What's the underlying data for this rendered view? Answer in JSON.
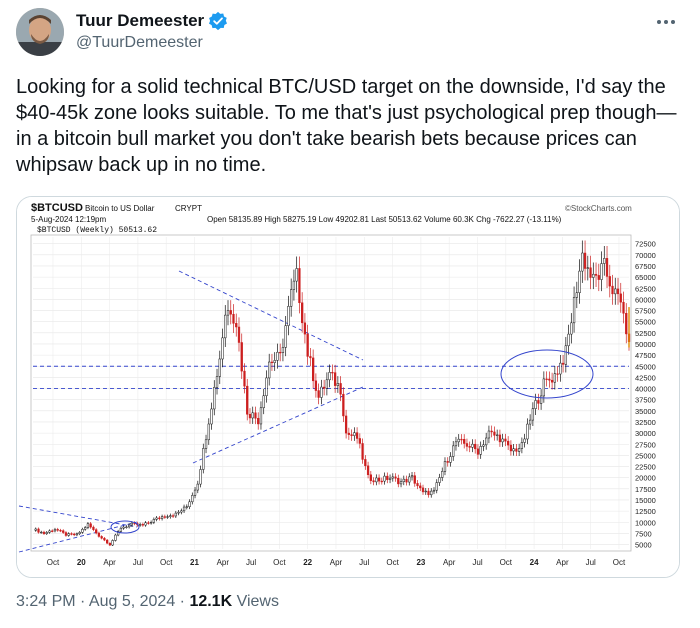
{
  "author": {
    "name": "Tuur Demeester",
    "handle": "@TuurDemeester"
  },
  "tweet": {
    "text": "Looking for a solid technical BTC/USD target on the downside, I'd say the $40-45k zone looks suitable. To me that's just psychological prep though—in a bitcoin bull market you don't take bearish bets because prices can whipsaw back up in no time."
  },
  "chart_header": {
    "symbol": "$BTCUSD",
    "name": "Bitcoin to US Dollar",
    "exchange": "CRYPT",
    "date": "5-Aug-2024 12:19pm",
    "source": "©StockCharts.com",
    "ohlc": "Open 58135.89  High 58275.19  Low 49202.81  Last 50513.62  Volume 60.3K  Chg -7622.27 (-13.11%)",
    "legend": "$BTCUSD (Weekly) 50513.62"
  },
  "colors": {
    "up": "#111111",
    "down": "#cc1f1f",
    "trend": "#3344cc"
  },
  "chart_data": {
    "type": "candlestick",
    "ylim": [
      4000,
      74000
    ],
    "yticks": [
      "72500",
      "70000",
      "67500",
      "65000",
      "62500",
      "60000",
      "57500",
      "55000",
      "52500",
      "50000",
      "47500",
      "45000",
      "42500",
      "40000",
      "37500",
      "35000",
      "32500",
      "30000",
      "27500",
      "25000",
      "22500",
      "20000",
      "17500",
      "15000",
      "12500",
      "10000",
      "7500",
      "5000"
    ],
    "xticks": [
      "Oct",
      "20",
      "Apr",
      "Jul",
      "Oct",
      "21",
      "Apr",
      "Jul",
      "Oct",
      "22",
      "Apr",
      "Jul",
      "Oct",
      "23",
      "Apr",
      "Jul",
      "Oct",
      "24",
      "Apr",
      "Jul",
      "Oct"
    ],
    "anchors": [
      [
        0,
        8500
      ],
      [
        4,
        7500
      ],
      [
        8,
        8500
      ],
      [
        12,
        7200
      ],
      [
        16,
        7200
      ],
      [
        20,
        9500
      ],
      [
        24,
        7000
      ],
      [
        28,
        5000
      ],
      [
        32,
        8800
      ],
      [
        36,
        9500
      ],
      [
        40,
        9300
      ],
      [
        44,
        10500
      ],
      [
        48,
        11500
      ],
      [
        52,
        11800
      ],
      [
        56,
        13500
      ],
      [
        60,
        19000
      ],
      [
        64,
        33000
      ],
      [
        68,
        47000
      ],
      [
        70,
        57000
      ],
      [
        72,
        58000
      ],
      [
        74,
        55000
      ],
      [
        78,
        35000
      ],
      [
        82,
        33000
      ],
      [
        86,
        46000
      ],
      [
        90,
        47000
      ],
      [
        94,
        61000
      ],
      [
        96,
        65000
      ],
      [
        100,
        48000
      ],
      [
        104,
        38000
      ],
      [
        108,
        43000
      ],
      [
        112,
        40000
      ],
      [
        114,
        30000
      ],
      [
        118,
        29000
      ],
      [
        122,
        20000
      ],
      [
        126,
        19500
      ],
      [
        130,
        20000
      ],
      [
        134,
        19000
      ],
      [
        138,
        20000
      ],
      [
        142,
        16500
      ],
      [
        146,
        16800
      ],
      [
        150,
        23000
      ],
      [
        154,
        28000
      ],
      [
        158,
        27500
      ],
      [
        162,
        26000
      ],
      [
        166,
        30000
      ],
      [
        170,
        29000
      ],
      [
        174,
        26000
      ],
      [
        178,
        27000
      ],
      [
        182,
        35000
      ],
      [
        186,
        41000
      ],
      [
        190,
        43000
      ],
      [
        194,
        48000
      ],
      [
        198,
        63000
      ],
      [
        200,
        70000
      ],
      [
        204,
        64000
      ],
      [
        208,
        67000
      ],
      [
        212,
        61000
      ],
      [
        215,
        58000
      ],
      [
        216,
        50513
      ]
    ],
    "horizontal_lines": [
      45000,
      40000
    ]
  },
  "timestamp": "3:24 PM · Aug 5, 2024 · ",
  "views_count": "12.1K",
  "views_label": " Views"
}
